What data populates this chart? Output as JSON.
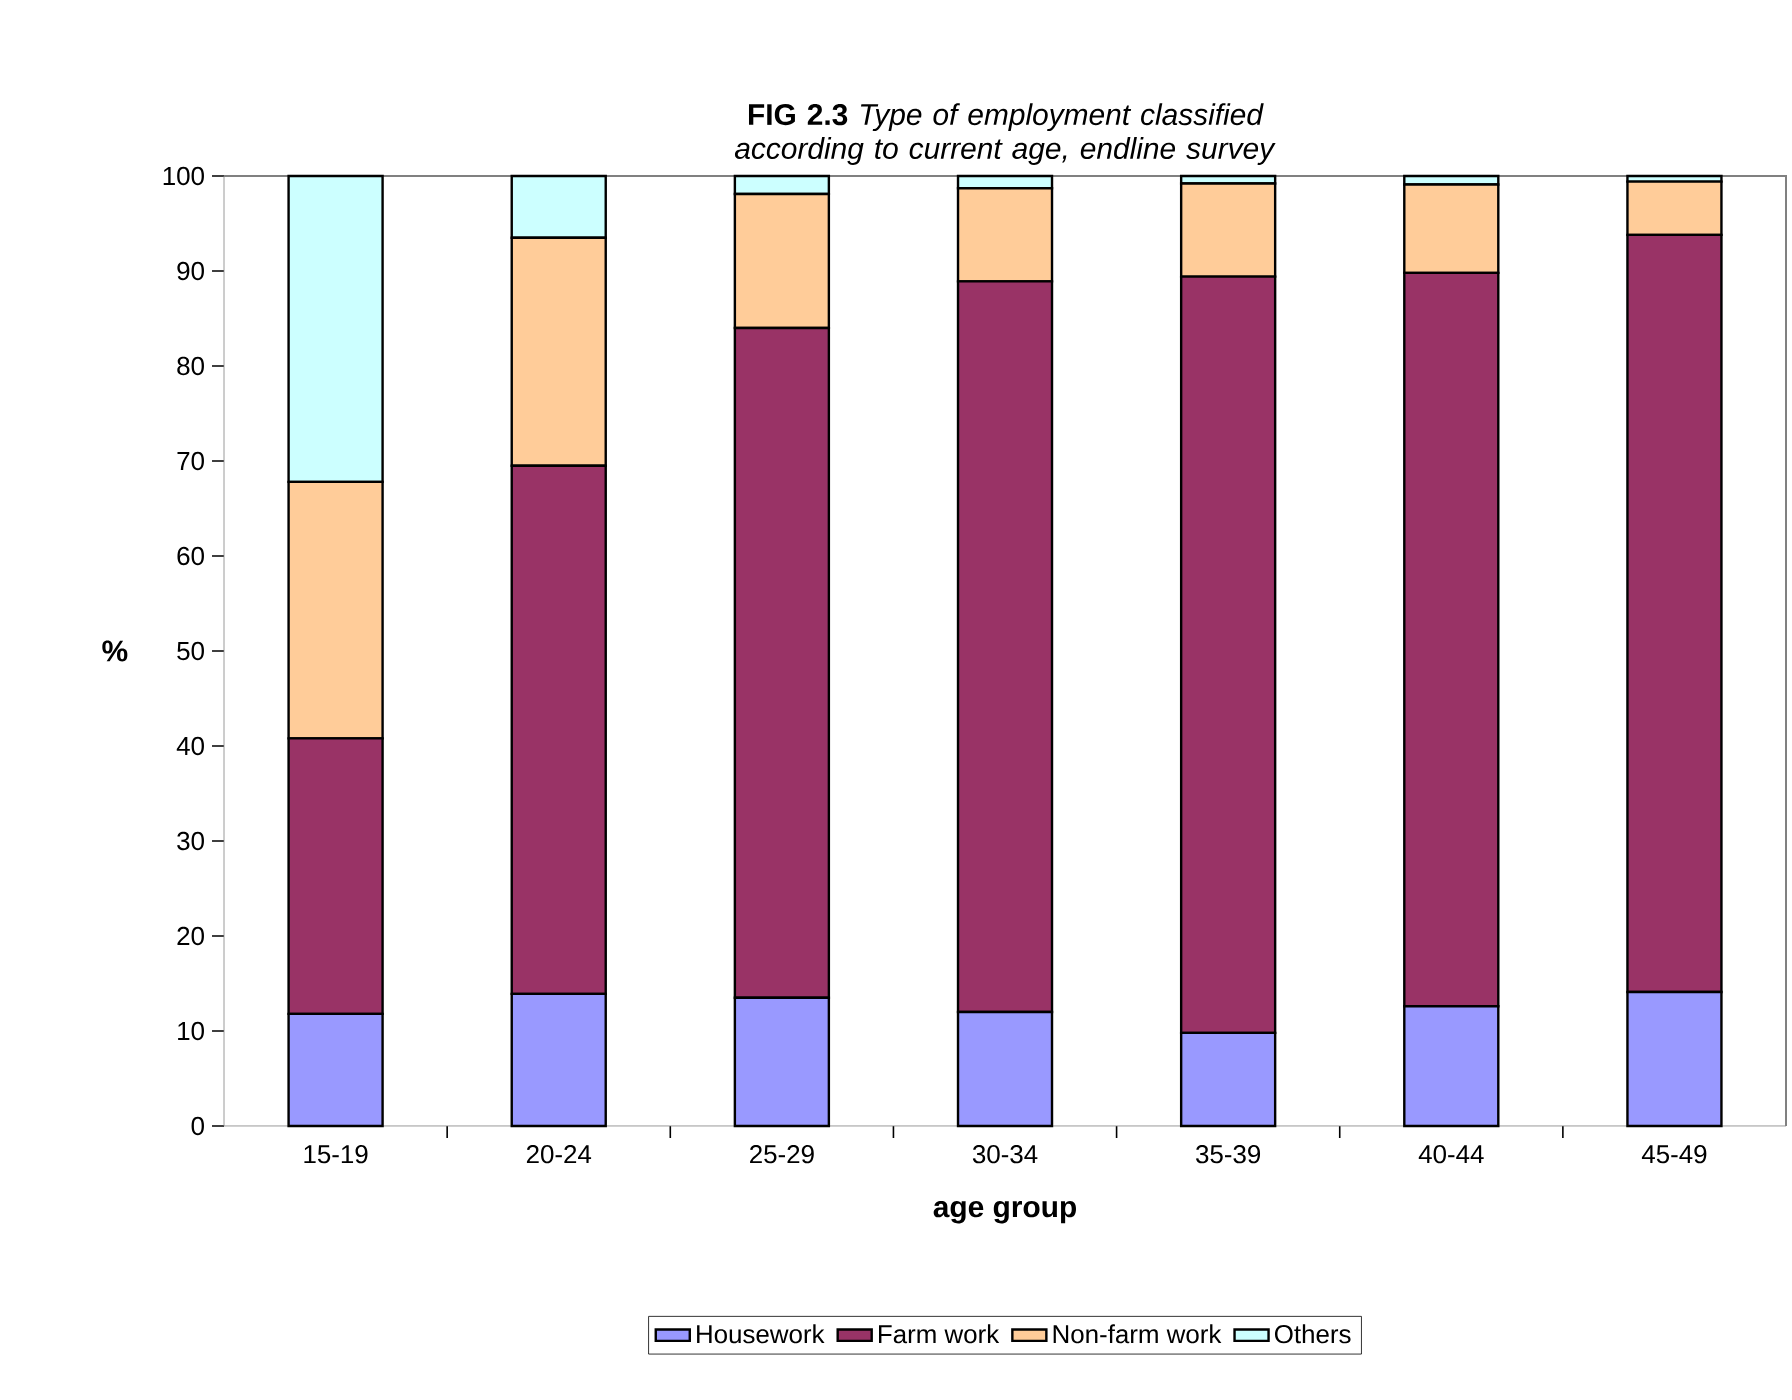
{
  "chart_data": {
    "type": "bar",
    "title": "**FIG 2.3** *Type of employment classified according to current age, endline survey*",
    "xlabel": "age group",
    "ylabel": "%",
    "categories": [
      "15-19",
      "20-24",
      "25-29",
      "30-34",
      "35-39",
      "40-44",
      "45-49"
    ],
    "series": [
      {
        "name": "Housework",
        "color": "#9999ff",
        "values": [
          11.8,
          13.9,
          13.5,
          12.0,
          9.8,
          12.6,
          14.1
        ]
      },
      {
        "name": "Farm work",
        "color": "#993366",
        "values": [
          29.0,
          55.6,
          70.5,
          76.9,
          79.6,
          77.2,
          79.7
        ]
      },
      {
        "name": "Non-farm work",
        "color": "#ffcc99",
        "values": [
          27.0,
          24.0,
          14.1,
          9.8,
          9.8,
          9.3,
          5.6
        ]
      },
      {
        "name": "Others",
        "color": "#ccffff",
        "values": [
          32.2,
          6.5,
          1.9,
          1.3,
          0.8,
          0.9,
          0.6
        ]
      }
    ],
    "stacked": true,
    "ylim": [
      0,
      100
    ],
    "yticks": [
      0,
      10,
      20,
      30,
      40,
      50,
      60,
      70,
      80,
      90,
      100
    ],
    "legend": "bottom"
  }
}
